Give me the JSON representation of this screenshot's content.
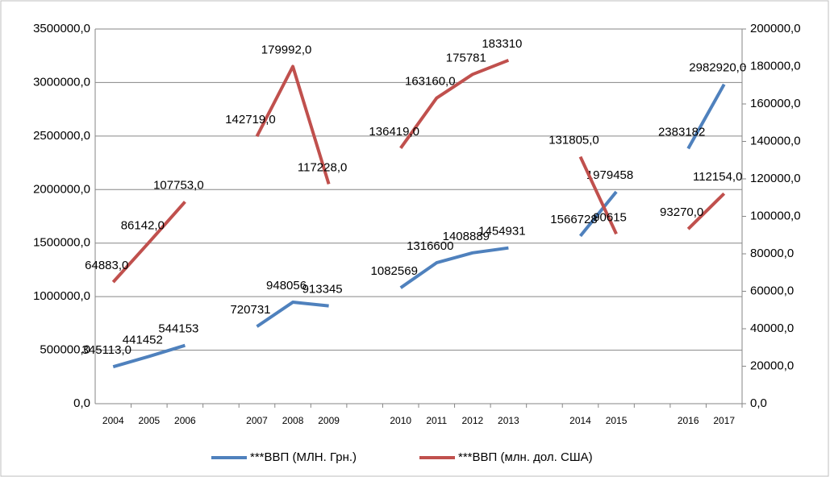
{
  "chart_data": {
    "type": "line",
    "categories": [
      "2004",
      "2005",
      "2006",
      null,
      "2007",
      "2008",
      "2009",
      null,
      "2010",
      "2011",
      "2012",
      "2013",
      null,
      "2014",
      "2015",
      null,
      "2016",
      "2017"
    ],
    "series": [
      {
        "name": "***ВВП (МЛН. Грн.)",
        "color": "#4f81bd",
        "axis": "y",
        "values": [
          345113,
          441452,
          544153,
          null,
          720731,
          948056,
          913345,
          null,
          1082569,
          1316600,
          1408889,
          1454931,
          null,
          1566728,
          1979458,
          null,
          2383182,
          2982920
        ],
        "value_labels": [
          "345113,0",
          "441452",
          "544153",
          null,
          "720731",
          "948056",
          "913345",
          null,
          "1082569",
          "1316600",
          "1408889",
          "1454931",
          null,
          "1566728",
          "1979458",
          null,
          "2383182",
          "2982920,0"
        ]
      },
      {
        "name": "***ВВП (млн. дол. США)",
        "color": "#c0504d",
        "axis": "y2",
        "values": [
          64883,
          86142,
          107753,
          null,
          142719,
          179992,
          117228,
          null,
          136419,
          163160,
          175781,
          183310,
          null,
          131805,
          90615,
          null,
          93270,
          112154
        ],
        "value_labels": [
          "64883,0",
          "86142,0",
          "107753,0",
          null,
          "142719,0",
          "179992,0",
          "117228,0",
          null,
          "136419,0",
          "163160,0",
          "175781",
          "183310",
          null,
          "131805,0",
          "90615",
          null,
          "93270,0",
          "112154,0"
        ]
      }
    ],
    "ylim": [
      0,
      3500000
    ],
    "yticks": [
      {
        "value": 0,
        "label": "0,0"
      },
      {
        "value": 500000,
        "label": "500000,0"
      },
      {
        "value": 1000000,
        "label": "1000000,0"
      },
      {
        "value": 1500000,
        "label": "1500000,0"
      },
      {
        "value": 2000000,
        "label": "2000000,0"
      },
      {
        "value": 2500000,
        "label": "2500000,0"
      },
      {
        "value": 3000000,
        "label": "3000000,0"
      },
      {
        "value": 3500000,
        "label": "3500000,0"
      }
    ],
    "y2lim": [
      0,
      200000
    ],
    "y2ticks": [
      {
        "value": 0,
        "label": "0,0"
      },
      {
        "value": 20000,
        "label": "20000,0"
      },
      {
        "value": 40000,
        "label": "40000,0"
      },
      {
        "value": 60000,
        "label": "60000,0"
      },
      {
        "value": 80000,
        "label": "80000,0"
      },
      {
        "value": 100000,
        "label": "100000,0"
      },
      {
        "value": 120000,
        "label": "120000,0"
      },
      {
        "value": 140000,
        "label": "140000,0"
      },
      {
        "value": 160000,
        "label": "160000,0"
      },
      {
        "value": 180000,
        "label": "180000,0"
      },
      {
        "value": 200000,
        "label": "200000,0"
      }
    ],
    "grid": true,
    "legend": "bottom"
  }
}
